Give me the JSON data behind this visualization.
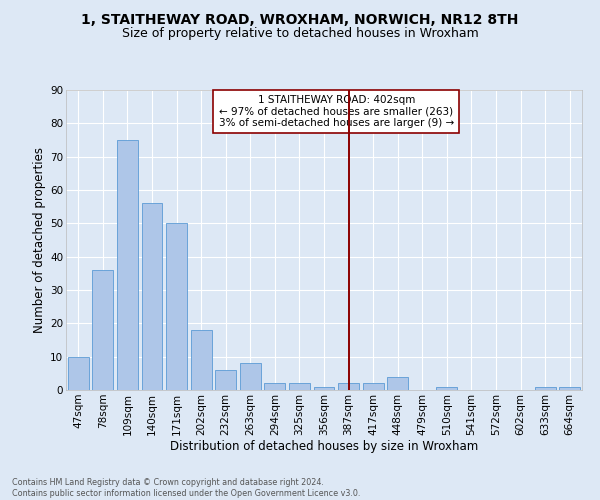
{
  "title": "1, STAITHEWAY ROAD, WROXHAM, NORWICH, NR12 8TH",
  "subtitle": "Size of property relative to detached houses in Wroxham",
  "xlabel": "Distribution of detached houses by size in Wroxham",
  "ylabel": "Number of detached properties",
  "footnote1": "Contains HM Land Registry data © Crown copyright and database right 2024.",
  "footnote2": "Contains public sector information licensed under the Open Government Licence v3.0.",
  "bar_labels": [
    "47sqm",
    "78sqm",
    "109sqm",
    "140sqm",
    "171sqm",
    "202sqm",
    "232sqm",
    "263sqm",
    "294sqm",
    "325sqm",
    "356sqm",
    "387sqm",
    "417sqm",
    "448sqm",
    "479sqm",
    "510sqm",
    "541sqm",
    "572sqm",
    "602sqm",
    "633sqm",
    "664sqm"
  ],
  "bar_values": [
    10,
    36,
    75,
    56,
    50,
    18,
    6,
    8,
    2,
    2,
    1,
    2,
    2,
    4,
    0,
    1,
    0,
    0,
    0,
    1,
    1
  ],
  "bar_color": "#aec6e8",
  "bar_edge_color": "#5b9bd5",
  "background_color": "#dde8f5",
  "grid_color": "#ffffff",
  "marker_label": "387sqm",
  "marker_color": "#8b0000",
  "annotation_text": "1 STAITHEWAY ROAD: 402sqm\n← 97% of detached houses are smaller (263)\n3% of semi-detached houses are larger (9) →",
  "ylim": [
    0,
    90
  ],
  "yticks": [
    0,
    10,
    20,
    30,
    40,
    50,
    60,
    70,
    80,
    90
  ],
  "title_fontsize": 10,
  "subtitle_fontsize": 9,
  "ylabel_fontsize": 8.5,
  "xlabel_fontsize": 8.5,
  "tick_fontsize": 7.5,
  "annotation_fontsize": 7.5,
  "footnote_fontsize": 5.8
}
